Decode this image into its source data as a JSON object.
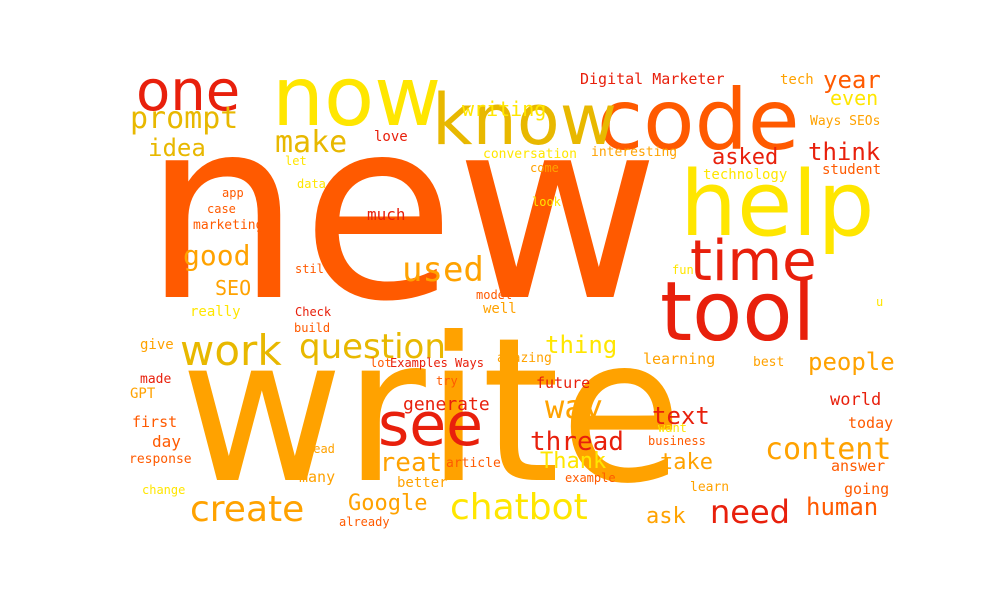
{
  "palette": {
    "red": "#e8200c",
    "orange_red": "#ff5a00",
    "orange": "#ffa200",
    "dark_yellow": "#e8b800",
    "yellow": "#ffe600"
  },
  "words": {
    "new": "new",
    "write": "write",
    "code": "code",
    "know": "know",
    "now": "now",
    "one": "one",
    "help": "help",
    "tool": "tool",
    "time": "time",
    "see": "see",
    "work": "work",
    "question": "question",
    "create": "create",
    "chatbot": "chatbot",
    "need": "need",
    "prompt": "prompt",
    "make": "make",
    "writing": "writing",
    "digital_marketer": "Digital Marketer",
    "year": "year",
    "even": "even",
    "tech": "tech",
    "ways_seos": "Ways SEOs",
    "think": "think",
    "asked": "asked",
    "idea": "idea",
    "love": "love",
    "let": "let",
    "conversation": "conversation",
    "interesting": "interesting",
    "technology": "technology",
    "student": "student",
    "come": "come",
    "app": "app",
    "data": "data",
    "case": "case",
    "marketing": "marketing",
    "look": "look",
    "much": "much",
    "good": "good",
    "used": "used",
    "fun": "fun",
    "still": "still",
    "seo": "SEO",
    "model": "model",
    "really": "really",
    "check": "Check",
    "build": "build",
    "well": "well",
    "u": "u",
    "give": "give",
    "thing": "thing",
    "amazing": "amazing",
    "learning": "learning",
    "best": "best",
    "people": "people",
    "lot": "lot",
    "examples_ways": "Examples Ways",
    "made": "made",
    "try": "try",
    "future": "future",
    "gpt": "GPT",
    "generate": "generate",
    "way": "way",
    "world": "world",
    "text": "text",
    "first": "first",
    "thread": "thread",
    "want": "want",
    "today": "today",
    "day": "day",
    "read": "read",
    "business": "business",
    "content": "content",
    "great": "great",
    "thank": "Thank",
    "response": "response",
    "article": "article",
    "take": "take",
    "answer": "answer",
    "many": "many",
    "example": "example",
    "change": "change",
    "better": "better",
    "learn": "learn",
    "going": "going",
    "google": "Google",
    "ask": "ask",
    "human": "human",
    "already": "already"
  }
}
